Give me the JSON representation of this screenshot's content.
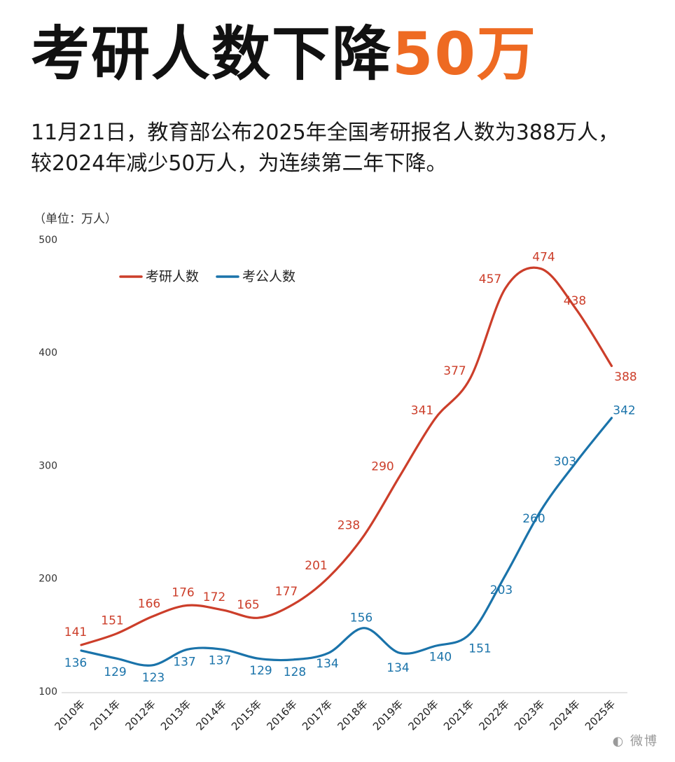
{
  "headline": {
    "main": "考研人数下降",
    "accent": "50万"
  },
  "subtitle": {
    "line1": "11月21日，教育部公布2025年全国考研报名人数为388万人，",
    "line2": "较2024年减少50万人，为连续第二年下降。"
  },
  "unit_label": "（单位：万人）",
  "colors": {
    "accent": "#ee6a22",
    "kaoyan": "#cc3e2a",
    "kaogong": "#1a73aa"
  },
  "chart_data": {
    "type": "line",
    "categories": [
      "2010年",
      "2011年",
      "2012年",
      "2013年",
      "2014年",
      "2015年",
      "2016年",
      "2017年",
      "2018年",
      "2019年",
      "2020年",
      "2021年",
      "2022年",
      "2023年",
      "2024年",
      "2025年"
    ],
    "yticks": [
      100,
      200,
      300,
      400,
      500
    ],
    "ylim": [
      100,
      500
    ],
    "legend_position": "top-left",
    "series": [
      {
        "name": "考研人数",
        "color": "#cc3e2a",
        "values": [
          141,
          151,
          166,
          176,
          172,
          165,
          177,
          201,
          238,
          290,
          341,
          377,
          457,
          474,
          438,
          388
        ]
      },
      {
        "name": "考公人数",
        "color": "#1a73aa",
        "values": [
          136,
          129,
          123,
          137,
          137,
          129,
          128,
          134,
          156,
          134,
          140,
          151,
          203,
          260,
          303,
          342
        ]
      }
    ]
  }
}
